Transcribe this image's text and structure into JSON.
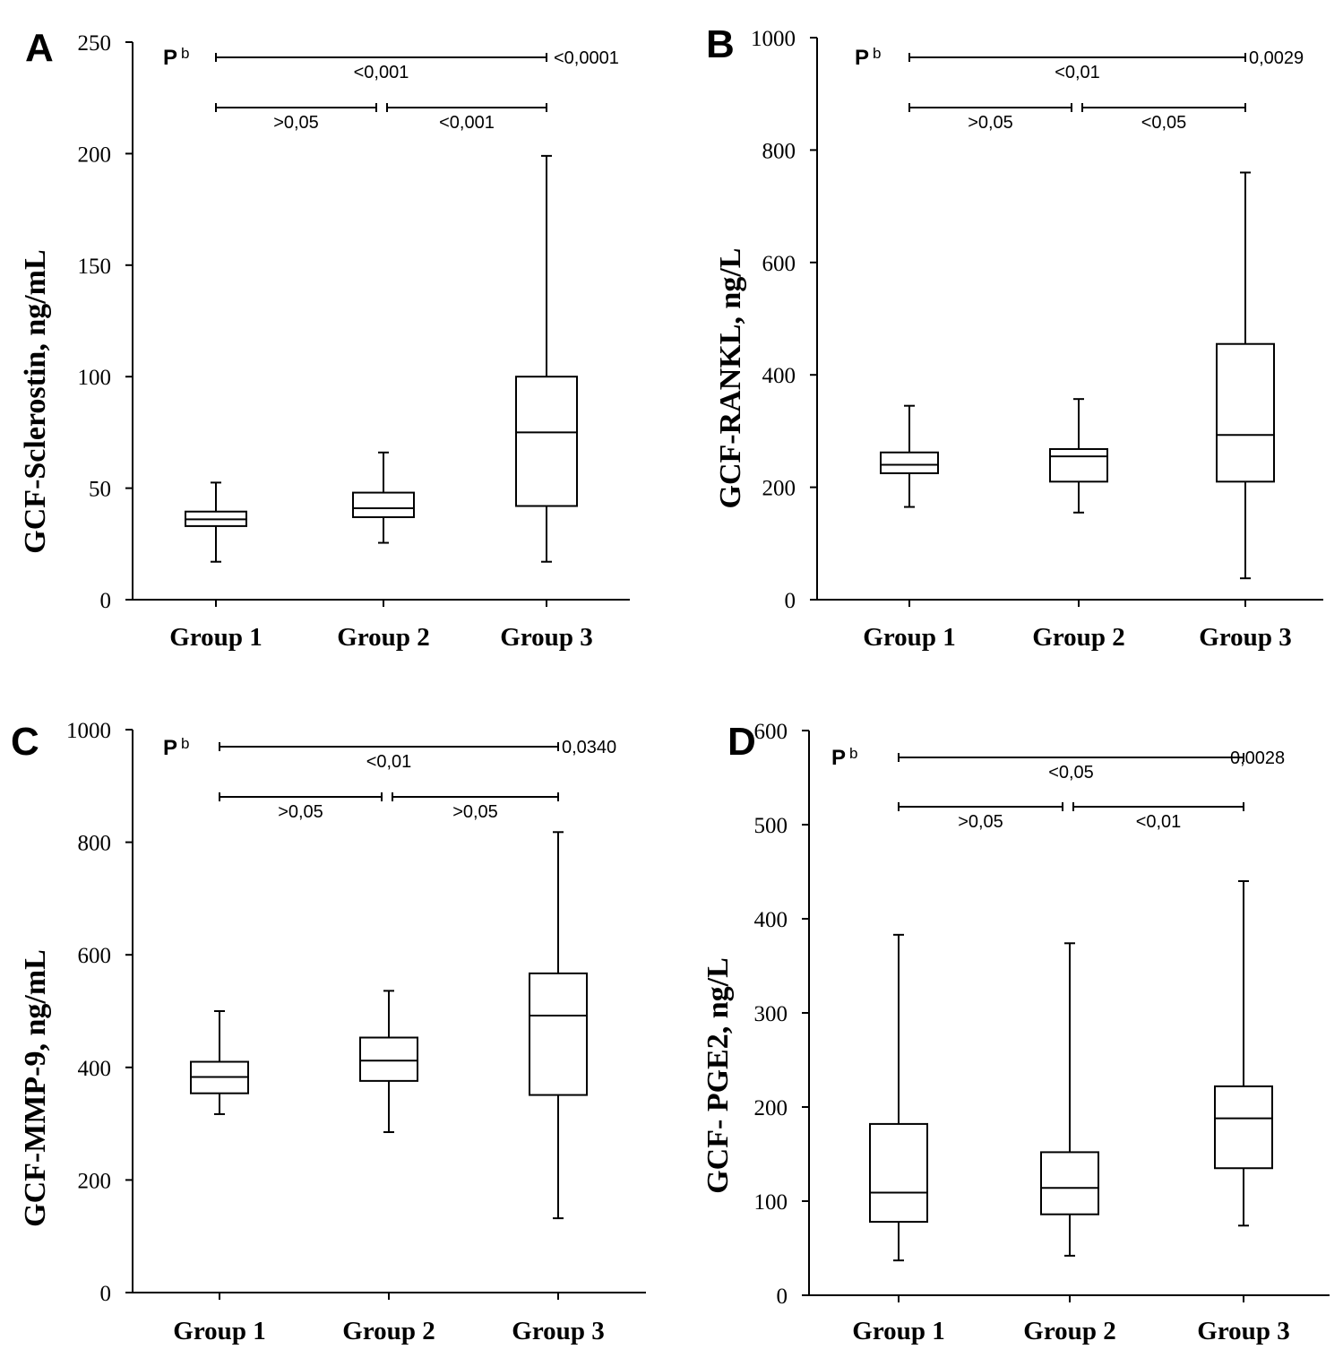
{
  "chart_data": [
    {
      "panel": "A",
      "type": "box",
      "ylabel": "GCF-Sclerostin, ng/mL",
      "ylim": [
        0,
        250
      ],
      "yticks": [
        0,
        50,
        100,
        150,
        200,
        250
      ],
      "categories": [
        "Group 1",
        "Group 2",
        "Group 3"
      ],
      "boxes": [
        {
          "min": 17,
          "q1": 33,
          "median": 36,
          "q3": 39.5,
          "max": 52.5
        },
        {
          "min": 25.5,
          "q1": 37,
          "median": 41,
          "q3": 48,
          "max": 66
        },
        {
          "min": 17,
          "q1": 42,
          "median": 75,
          "q3": 100,
          "max": 199
        }
      ],
      "p_header": "P",
      "p_header_sup": "b",
      "comparisons": [
        {
          "from": 0,
          "to": 2,
          "label": "<0,001",
          "row": "top"
        },
        {
          "from": 0,
          "to": 1,
          "label": ">0,05",
          "row": "second"
        },
        {
          "from": 1,
          "to": 2,
          "label": "<0,001",
          "row": "second"
        }
      ],
      "overall_p": "<0,0001"
    },
    {
      "panel": "B",
      "type": "box",
      "ylabel": "GCF-RANKL, ng/L",
      "ylim": [
        0,
        1000
      ],
      "yticks": [
        0,
        200,
        400,
        600,
        800,
        1000
      ],
      "categories": [
        "Group 1",
        "Group 2",
        "Group 3"
      ],
      "boxes": [
        {
          "min": 165,
          "q1": 225,
          "median": 240,
          "q3": 262,
          "max": 345
        },
        {
          "min": 155,
          "q1": 210,
          "median": 255,
          "q3": 268,
          "max": 357
        },
        {
          "min": 38,
          "q1": 210,
          "median": 293,
          "q3": 455,
          "max": 760
        }
      ],
      "p_header": "P",
      "p_header_sup": "b",
      "comparisons": [
        {
          "from": 0,
          "to": 2,
          "label": "<0,01",
          "row": "top"
        },
        {
          "from": 0,
          "to": 1,
          "label": ">0,05",
          "row": "second"
        },
        {
          "from": 1,
          "to": 2,
          "label": "<0,05",
          "row": "second"
        }
      ],
      "overall_p": "0,0029"
    },
    {
      "panel": "C",
      "type": "box",
      "ylabel": "GCF-MMP-9, ng/mL",
      "ylim": [
        0,
        1000
      ],
      "yticks": [
        0,
        200,
        400,
        600,
        800,
        1000
      ],
      "categories": [
        "Group 1",
        "Group 2",
        "Group 3"
      ],
      "boxes": [
        {
          "min": 317,
          "q1": 354,
          "median": 383,
          "q3": 410,
          "max": 500
        },
        {
          "min": 285,
          "q1": 376,
          "median": 412,
          "q3": 453,
          "max": 536
        },
        {
          "min": 132,
          "q1": 351,
          "median": 492,
          "q3": 567,
          "max": 818
        }
      ],
      "p_header": "P",
      "p_header_sup": "b",
      "comparisons": [
        {
          "from": 0,
          "to": 2,
          "label": "<0,01",
          "row": "top"
        },
        {
          "from": 0,
          "to": 1,
          "label": ">0,05",
          "row": "second"
        },
        {
          "from": 1,
          "to": 2,
          "label": ">0,05",
          "row": "second"
        }
      ],
      "overall_p": "0,0340"
    },
    {
      "panel": "D",
      "type": "box",
      "ylabel": "GCF- PGE2, ng/L",
      "ylim": [
        0,
        600
      ],
      "yticks": [
        0,
        100,
        200,
        300,
        400,
        500,
        600
      ],
      "categories": [
        "Group 1",
        "Group 2",
        "Group 3"
      ],
      "boxes": [
        {
          "min": 37,
          "q1": 78,
          "median": 109,
          "q3": 182,
          "max": 383
        },
        {
          "min": 42,
          "q1": 86,
          "median": 114,
          "q3": 152,
          "max": 374
        },
        {
          "min": 74,
          "q1": 135,
          "median": 188,
          "q3": 222,
          "max": 440
        }
      ],
      "p_header": "P",
      "p_header_sup": "b",
      "comparisons": [
        {
          "from": 0,
          "to": 2,
          "label": "<0,05",
          "row": "top"
        },
        {
          "from": 0,
          "to": 1,
          "label": ">0,05",
          "row": "second"
        },
        {
          "from": 1,
          "to": 2,
          "label": "<0,01",
          "row": "second"
        }
      ],
      "overall_p": "0,0028"
    }
  ]
}
